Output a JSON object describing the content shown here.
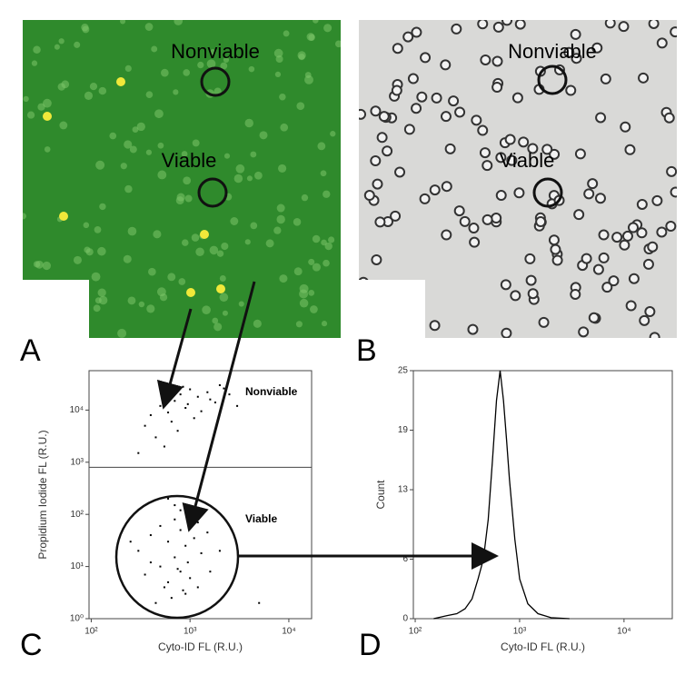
{
  "panels": [
    {
      "label": "A",
      "annotations": [
        "Nonviable",
        "Viable"
      ]
    },
    {
      "label": "B",
      "annotations": [
        "Nonviable",
        "Viable"
      ]
    }
  ],
  "chart_data": [
    {
      "type": "scatter",
      "panel": "C",
      "xlabel": "Cyto-ID FL (R.U.)",
      "ylabel": "Propidium Iodide FL (R.U.)",
      "xscale": "log",
      "yscale": "log",
      "xlim": [
        95,
        17000
      ],
      "ylim": [
        1,
        57000
      ],
      "xticks": [
        {
          "value": 100,
          "label": "10²"
        },
        {
          "value": 1000,
          "label": "10³"
        },
        {
          "value": 10000,
          "label": "10⁴"
        }
      ],
      "yticks": [
        {
          "value": 1,
          "label": "10⁰"
        },
        {
          "value": 10,
          "label": "10¹"
        },
        {
          "value": 100,
          "label": "10²"
        },
        {
          "value": 1000,
          "label": "10³"
        },
        {
          "value": 10000,
          "label": "10⁴"
        }
      ],
      "threshold": 800,
      "annotations": [
        "Nonviable",
        "Viable"
      ],
      "color": "#000000",
      "x": [
        400,
        500,
        600,
        700,
        800,
        900,
        1000,
        1200,
        1500,
        1800,
        2000,
        2500,
        3000,
        350,
        450,
        550,
        650,
        750,
        1100,
        1300,
        1600,
        300,
        2200,
        850,
        950,
        300,
        400,
        500,
        600,
        700,
        800,
        900,
        1000,
        1100,
        1200,
        1500,
        2000,
        500,
        600,
        700,
        800,
        900,
        400,
        1000,
        1300,
        700,
        600,
        800,
        350,
        450,
        550,
        650,
        750,
        850,
        950,
        1200,
        1600,
        250,
        3000,
        5000
      ],
      "values": [
        8000,
        12000,
        9000,
        15000,
        20000,
        11000,
        25000,
        18000,
        22000,
        14000,
        30000,
        20000,
        12000,
        5000,
        3000,
        2000,
        6000,
        4000,
        7000,
        9500,
        16000,
        1500,
        26000,
        28000,
        13000,
        20,
        40,
        60,
        30,
        80,
        50,
        25,
        100,
        35,
        70,
        45,
        20,
        10,
        5,
        15,
        8,
        3,
        12,
        6,
        18,
        150,
        200,
        120,
        7,
        2,
        4,
        2.5,
        9,
        3.5,
        12,
        4,
        8,
        30,
        10,
        2
      ]
    },
    {
      "type": "line",
      "panel": "D",
      "xlabel": "Cyto-ID FL (R.U.)",
      "ylabel": "Count",
      "xscale": "log",
      "xlim": [
        96,
        29000
      ],
      "ylim": [
        0,
        25
      ],
      "xticks": [
        {
          "value": 100,
          "label": "10²"
        },
        {
          "value": 1000,
          "label": "10³"
        },
        {
          "value": 10000,
          "label": "10⁴"
        }
      ],
      "yticks": [
        0,
        6,
        13,
        19,
        25
      ],
      "color": "#000000",
      "x": [
        150,
        200,
        250,
        300,
        350,
        400,
        450,
        500,
        550,
        600,
        650,
        700,
        750,
        800,
        900,
        1000,
        1200,
        1500,
        2000,
        3000
      ],
      "values": [
        0,
        0.3,
        0.5,
        1,
        2,
        4,
        6,
        10,
        16,
        22,
        25,
        22,
        18,
        14,
        8,
        4,
        1.5,
        0.5,
        0.1,
        0
      ]
    }
  ]
}
